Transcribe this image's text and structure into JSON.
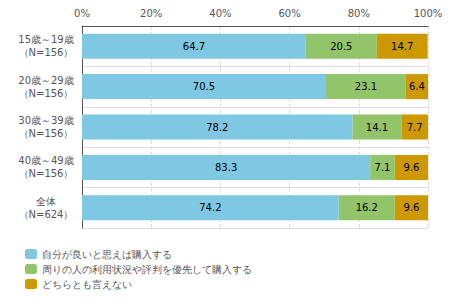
{
  "chart_data": {
    "type": "bar",
    "orientation": "horizontal",
    "stacked": true,
    "data_labels": true,
    "grid": true,
    "legend": "bottom",
    "categories": [
      "15歳～19歳\n（N=156）",
      "20歳～29歳\n（N=156）",
      "30歳～39歳\n（N=156）",
      "40歳～49歳\n（N=156）",
      "全体\n（N=624）"
    ],
    "series": [
      {
        "name": "自分が良いと思えば購入する",
        "color": "#7EC8E3",
        "values": [
          64.7,
          70.5,
          78.2,
          83.3,
          74.2
        ]
      },
      {
        "name": "周りの人の利用状況や評判を優先して購入する",
        "color": "#92C46A",
        "values": [
          20.5,
          23.1,
          14.1,
          7.1,
          16.2
        ]
      },
      {
        "name": "どちらとも言えない",
        "color": "#CC9900",
        "values": [
          14.7,
          6.4,
          7.7,
          9.6,
          9.6
        ]
      }
    ],
    "xlim": [
      0,
      100
    ],
    "xticks": [
      {
        "value": 0,
        "label": "0%"
      },
      {
        "value": 20,
        "label": "20%"
      },
      {
        "value": 40,
        "label": "40%"
      },
      {
        "value": 60,
        "label": "60%"
      },
      {
        "value": 80,
        "label": "80%"
      },
      {
        "value": 100,
        "label": "100%"
      }
    ]
  }
}
